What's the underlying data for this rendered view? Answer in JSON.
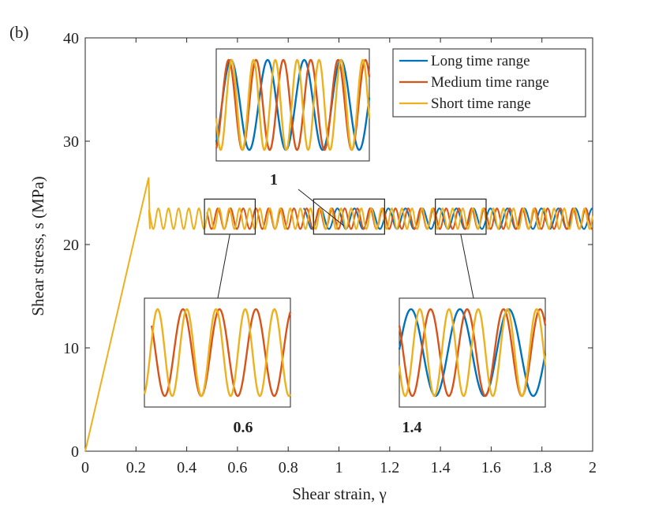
{
  "panel_label": "(b)",
  "chart_data": {
    "type": "line",
    "title": "",
    "xlabel": "Shear strain, γ",
    "ylabel": "Shear stress, s (MPa)",
    "xlim": [
      0,
      2
    ],
    "ylim": [
      0,
      40
    ],
    "xticks": [
      "0",
      "0.2",
      "0.4",
      "0.6",
      "0.8",
      "1",
      "1.2",
      "1.4",
      "1.6",
      "1.8",
      "2"
    ],
    "yticks": [
      "0",
      "10",
      "20",
      "30",
      "40"
    ],
    "legend_position": "top-right",
    "elastic_peak": {
      "strain": 0.25,
      "stress": 26.5
    },
    "oscillation_band": {
      "min": 21.5,
      "max": 23.5
    },
    "series": [
      {
        "name": "Long time range",
        "color": "#0072BD",
        "start_strain": 0.86,
        "oscillation_period_strain": 0.067
      },
      {
        "name": "Medium time range",
        "color": "#D95319",
        "start_strain": 0.48,
        "oscillation_period_strain": 0.05
      },
      {
        "name": "Short time range",
        "color": "#EDB120",
        "start_strain": 0.25,
        "oscillation_period_strain": 0.04
      }
    ],
    "zoom_insets": [
      {
        "label": "1",
        "strain_range": [
          0.9,
          1.18
        ],
        "stress_range": [
          21.0,
          24.4
        ]
      },
      {
        "label": "0.6",
        "strain_range": [
          0.47,
          0.67
        ],
        "stress_range": [
          21.0,
          24.4
        ]
      },
      {
        "label": "1.4",
        "strain_range": [
          1.38,
          1.58
        ],
        "stress_range": [
          21.0,
          24.4
        ]
      }
    ]
  }
}
